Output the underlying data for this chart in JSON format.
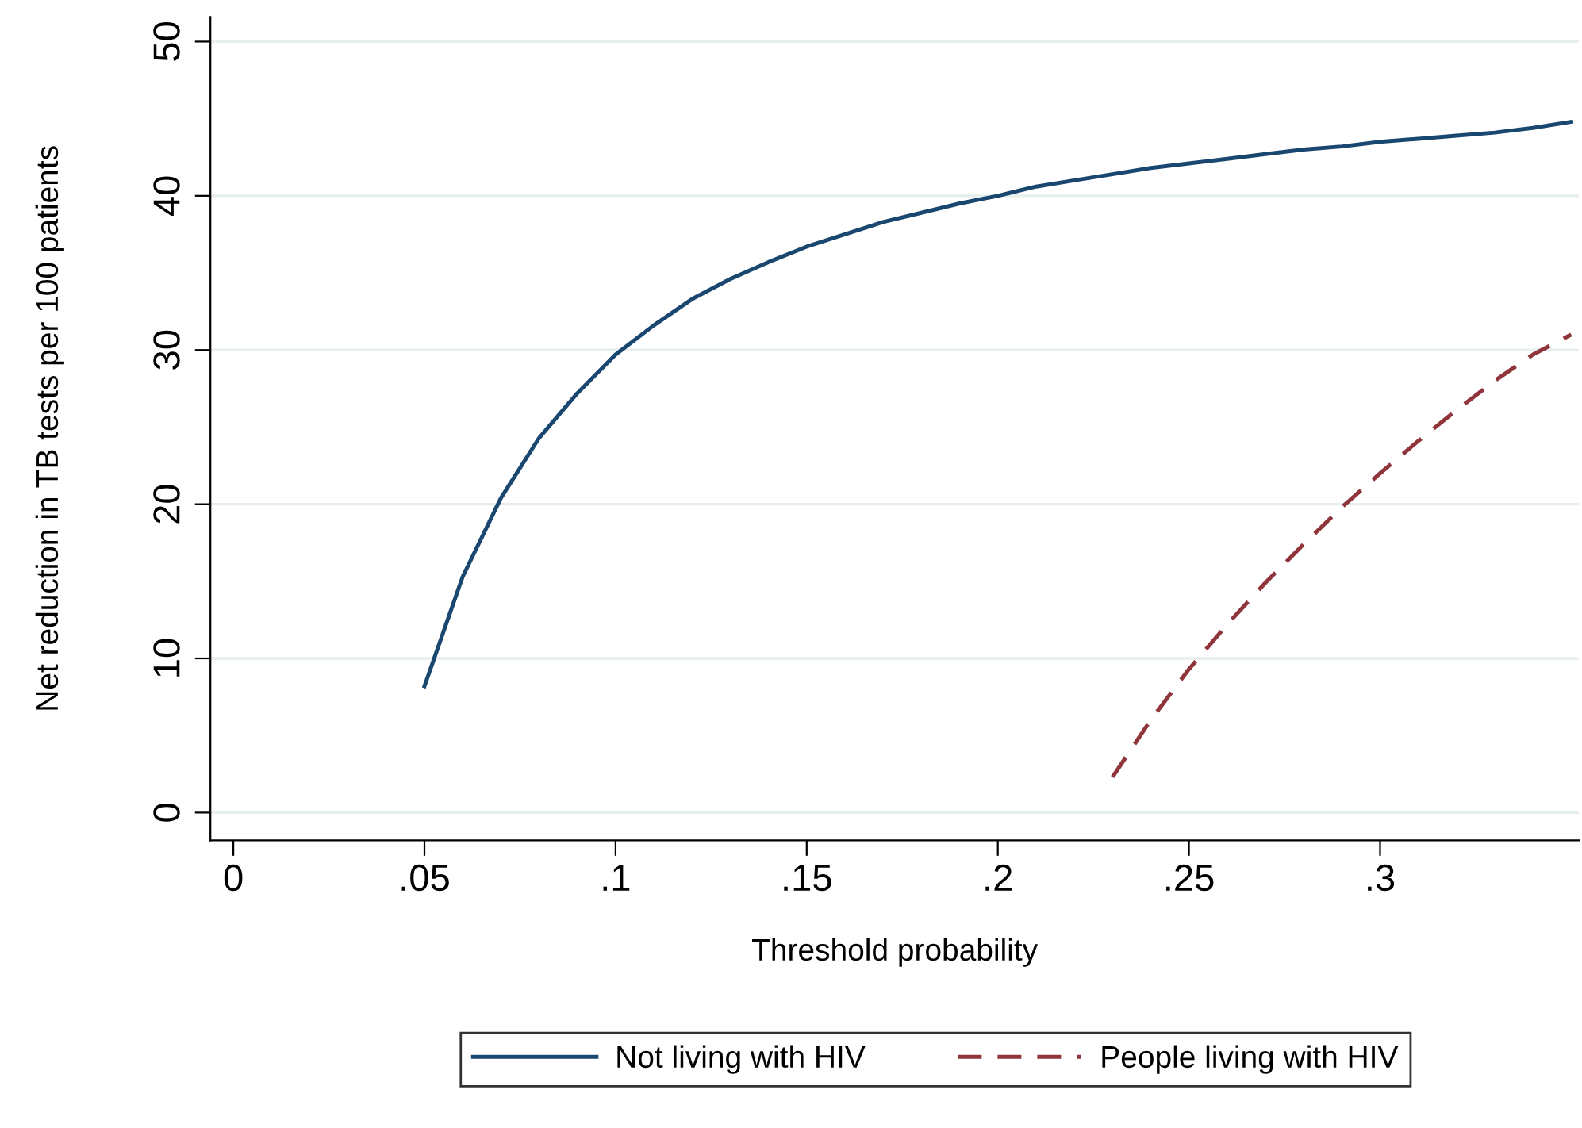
{
  "chart_data": {
    "type": "line",
    "xlabel": "Threshold probability",
    "ylabel": "Net reduction in TB tests per 100 patients",
    "xlim": [
      -0.006,
      0.352
    ],
    "ylim": [
      -1.8,
      51.6
    ],
    "xticks": [
      0,
      {
        "value": 0.05,
        "label": ".05"
      },
      {
        "value": 0.1,
        "label": ".1"
      },
      {
        "value": 0.15,
        "label": ".15"
      },
      {
        "value": 0.2,
        "label": ".2"
      },
      {
        "value": 0.25,
        "label": ".25"
      },
      {
        "value": 0.3,
        "label": ".3"
      }
    ],
    "yticks": [
      0,
      10,
      20,
      30,
      40,
      50
    ],
    "grid": "y",
    "legend": "bottom",
    "series": [
      {
        "name": "Not living with HIV",
        "color": "#1a476f",
        "line_style": "solid",
        "x": [
          0.05,
          0.06,
          0.07,
          0.08,
          0.09,
          0.1,
          0.11,
          0.12,
          0.13,
          0.14,
          0.15,
          0.16,
          0.17,
          0.18,
          0.19,
          0.2,
          0.21,
          0.22,
          0.23,
          0.24,
          0.25,
          0.26,
          0.27,
          0.28,
          0.29,
          0.3,
          0.31,
          0.32,
          0.33,
          0.34,
          0.35
        ],
        "values": [
          8.2,
          15.3,
          20.4,
          24.3,
          27.2,
          29.7,
          31.6,
          33.3,
          34.6,
          35.7,
          36.7,
          37.5,
          38.3,
          38.9,
          39.5,
          40.0,
          40.6,
          41.0,
          41.4,
          41.8,
          42.1,
          42.4,
          42.7,
          43.0,
          43.2,
          43.5,
          43.7,
          43.9,
          44.1,
          44.4,
          44.8
        ]
      },
      {
        "name": "People living with HIV",
        "color": "#90353b",
        "line_style": "dashed",
        "x": [
          0.23,
          0.24,
          0.25,
          0.26,
          0.27,
          0.28,
          0.29,
          0.3,
          0.31,
          0.32,
          0.33,
          0.34,
          0.35
        ],
        "values": [
          2.3,
          6.0,
          9.3,
          12.2,
          14.9,
          17.4,
          19.8,
          22.0,
          24.1,
          26.1,
          28.0,
          29.7,
          31.0
        ]
      }
    ]
  }
}
